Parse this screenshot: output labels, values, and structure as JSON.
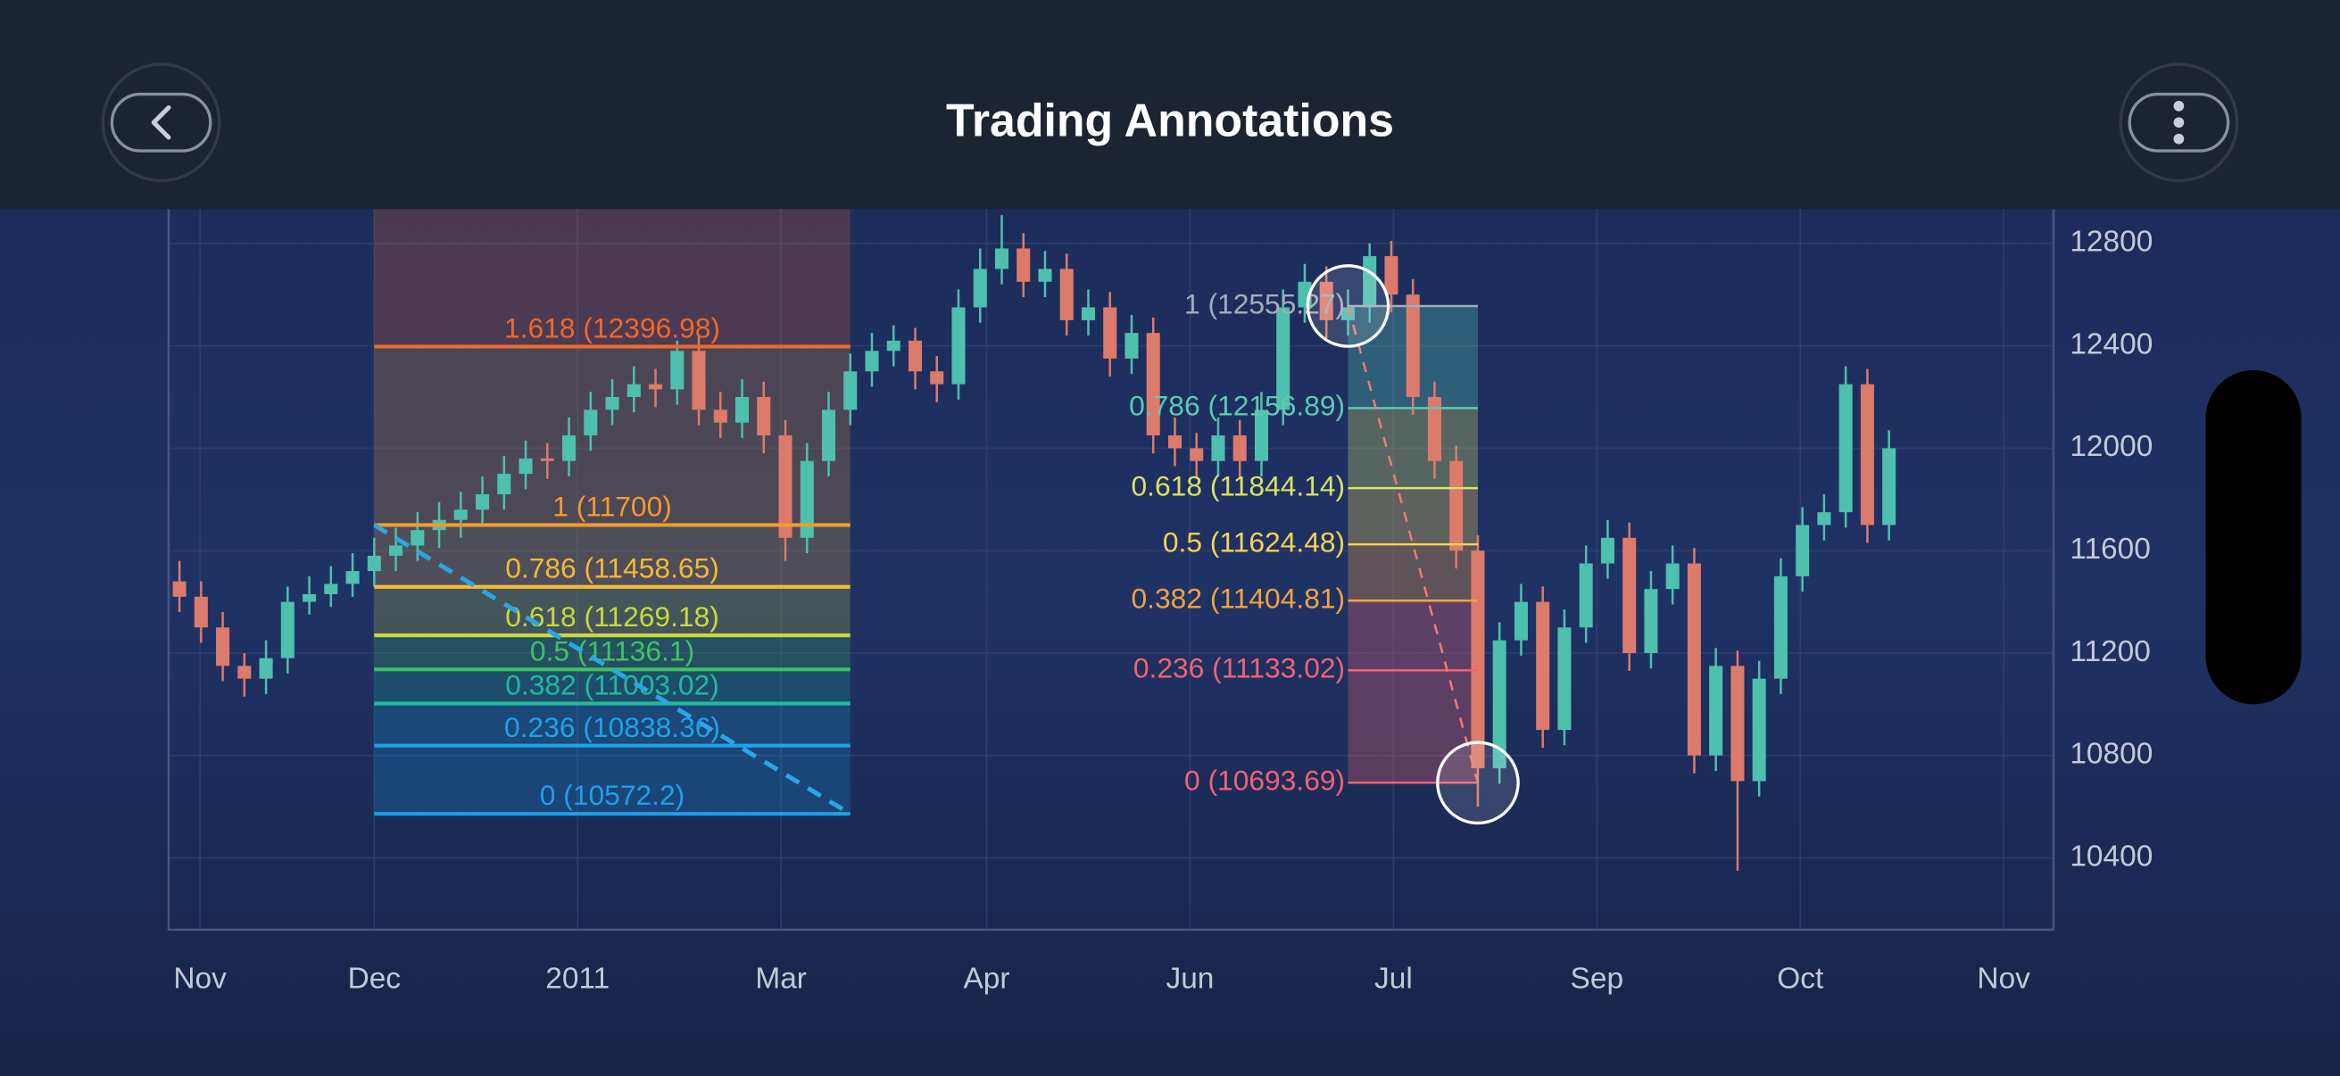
{
  "header": {
    "title": "Trading Annotations"
  },
  "chart_data": {
    "type": "candlestick",
    "up_color": "#4fbfae",
    "down_color": "#dc7a6c",
    "xlim": [
      0,
      87.1
    ],
    "xticks": [
      {
        "value": 1.45,
        "label": "Nov"
      },
      {
        "value": 9.5,
        "label": "Dec"
      },
      {
        "value": 18.9,
        "label": "2011"
      },
      {
        "value": 28.3,
        "label": "Mar"
      },
      {
        "value": 37.8,
        "label": "Apr"
      },
      {
        "value": 47.2,
        "label": "Jun"
      },
      {
        "value": 56.6,
        "label": "Jul"
      },
      {
        "value": 66.0,
        "label": "Sep"
      },
      {
        "value": 75.4,
        "label": "Oct"
      },
      {
        "value": 84.8,
        "label": "Nov"
      }
    ],
    "ylim": [
      10120,
      12934
    ],
    "yticks": [
      10400,
      10800,
      11200,
      11600,
      12000,
      12400,
      12800
    ],
    "grid": true,
    "candles": [
      [
        11480,
        11560,
        11360,
        11420
      ],
      [
        11420,
        11480,
        11240,
        11300
      ],
      [
        11300,
        11360,
        11090,
        11150
      ],
      [
        11150,
        11200,
        11030,
        11100
      ],
      [
        11100,
        11250,
        11040,
        11180
      ],
      [
        11180,
        11460,
        11120,
        11400
      ],
      [
        11400,
        11500,
        11350,
        11430
      ],
      [
        11430,
        11540,
        11380,
        11470
      ],
      [
        11470,
        11590,
        11420,
        11520
      ],
      [
        11520,
        11650,
        11460,
        11580
      ],
      [
        11580,
        11690,
        11520,
        11620
      ],
      [
        11620,
        11750,
        11560,
        11680
      ],
      [
        11680,
        11790,
        11610,
        11720
      ],
      [
        11720,
        11830,
        11650,
        11760
      ],
      [
        11760,
        11890,
        11700,
        11820
      ],
      [
        11820,
        11970,
        11760,
        11900
      ],
      [
        11900,
        12030,
        11840,
        11960
      ],
      [
        11960,
        12020,
        11880,
        11950
      ],
      [
        11950,
        12120,
        11890,
        12050
      ],
      [
        12050,
        12220,
        11990,
        12150
      ],
      [
        12150,
        12270,
        12090,
        12200
      ],
      [
        12200,
        12320,
        12140,
        12250
      ],
      [
        12250,
        12310,
        12160,
        12230
      ],
      [
        12230,
        12420,
        12170,
        12380
      ],
      [
        12380,
        12440,
        12090,
        12150
      ],
      [
        12150,
        12220,
        12040,
        12100
      ],
      [
        12100,
        12270,
        12040,
        12200
      ],
      [
        12200,
        12260,
        11980,
        12050
      ],
      [
        12050,
        12110,
        11560,
        11650
      ],
      [
        11650,
        12020,
        11590,
        11950
      ],
      [
        11950,
        12220,
        11890,
        12150
      ],
      [
        12150,
        12370,
        12090,
        12300
      ],
      [
        12300,
        12450,
        12240,
        12380
      ],
      [
        12380,
        12480,
        12320,
        12420
      ],
      [
        12420,
        12470,
        12230,
        12300
      ],
      [
        12300,
        12360,
        12180,
        12250
      ],
      [
        12250,
        12620,
        12190,
        12550
      ],
      [
        12550,
        12780,
        12490,
        12700
      ],
      [
        12700,
        12910,
        12640,
        12780
      ],
      [
        12780,
        12840,
        12590,
        12650
      ],
      [
        12650,
        12770,
        12590,
        12700
      ],
      [
        12700,
        12760,
        12440,
        12500
      ],
      [
        12500,
        12620,
        12440,
        12550
      ],
      [
        12550,
        12610,
        12280,
        12350
      ],
      [
        12350,
        12520,
        12290,
        12450
      ],
      [
        12450,
        12510,
        11980,
        12050
      ],
      [
        12050,
        12120,
        11930,
        12000
      ],
      [
        12000,
        12060,
        11880,
        11950
      ],
      [
        11950,
        12120,
        11890,
        12050
      ],
      [
        12050,
        12110,
        11880,
        11950
      ],
      [
        11950,
        12220,
        11890,
        12150
      ],
      [
        12150,
        12620,
        12090,
        12550
      ],
      [
        12550,
        12720,
        12490,
        12650
      ],
      [
        12650,
        12710,
        12430,
        12500
      ],
      [
        12500,
        12620,
        12440,
        12550
      ],
      [
        12550,
        12800,
        12490,
        12750
      ],
      [
        12750,
        12810,
        12530,
        12600
      ],
      [
        12600,
        12660,
        12130,
        12200
      ],
      [
        12200,
        12260,
        11880,
        11950
      ],
      [
        11950,
        12010,
        11530,
        11600
      ],
      [
        11600,
        11660,
        10600,
        10750
      ],
      [
        10750,
        11320,
        10690,
        11250
      ],
      [
        11250,
        11470,
        11190,
        11400
      ],
      [
        11400,
        11460,
        10830,
        10900
      ],
      [
        10900,
        11370,
        10840,
        11300
      ],
      [
        11300,
        11620,
        11240,
        11550
      ],
      [
        11550,
        11720,
        11490,
        11650
      ],
      [
        11650,
        11710,
        11130,
        11200
      ],
      [
        11200,
        11520,
        11140,
        11450
      ],
      [
        11450,
        11620,
        11390,
        11550
      ],
      [
        11550,
        11610,
        10730,
        10800
      ],
      [
        10800,
        11220,
        10740,
        11150
      ],
      [
        11150,
        11210,
        10350,
        10700
      ],
      [
        10700,
        11170,
        10640,
        11100
      ],
      [
        11100,
        11570,
        11040,
        11500
      ],
      [
        11500,
        11770,
        11440,
        11700
      ],
      [
        11700,
        11820,
        11640,
        11750
      ],
      [
        11750,
        12320,
        11690,
        12250
      ],
      [
        12250,
        12310,
        11630,
        11700
      ],
      [
        11700,
        12070,
        11640,
        12000
      ]
    ],
    "fibonacci": [
      {
        "from": 9,
        "to": 31,
        "line_color": "#2aa6e6",
        "levels": [
          {
            "label": "1.618 (12396.98)",
            "value": 12396.98,
            "color": "#f0682c"
          },
          {
            "label": "1 (11700)",
            "value": 11700,
            "color": "#f39a2c"
          },
          {
            "label": "0.786 (11458.65)",
            "value": 11458.65,
            "color": "#f5b835"
          },
          {
            "label": "0.618 (11269.18)",
            "value": 11269.18,
            "color": "#c9d83c"
          },
          {
            "label": "0.5 (11136.1)",
            "value": 11136.1,
            "color": "#3fc262"
          },
          {
            "label": "0.382 (11003.02)",
            "value": 11003.02,
            "color": "#22b99c"
          },
          {
            "label": "0.236 (10838.36)",
            "value": 10838.36,
            "color": "#1ca3e4"
          },
          {
            "label": "0 (10572.2)",
            "value": 10572.2,
            "color": "#1ca0ea"
          }
        ]
      },
      {
        "from": 54,
        "to": 60,
        "line_color": "#f07a78",
        "levels": [
          {
            "label": "1 (12555.27)",
            "value": 12555.27,
            "color": "#a4acbc"
          },
          {
            "label": "0.786 (12156.89)",
            "value": 12156.89,
            "color": "#5ec9b2"
          },
          {
            "label": "0.618 (11844.14)",
            "value": 11844.14,
            "color": "#d9e262"
          },
          {
            "label": "0.5 (11624.48)",
            "value": 11624.48,
            "color": "#f6d252"
          },
          {
            "label": "0.382 (11404.81)",
            "value": 11404.81,
            "color": "#f2a342"
          },
          {
            "label": "0.236 (11133.02)",
            "value": 11133.02,
            "color": "#f26272"
          },
          {
            "label": "0 (10693.69)",
            "value": 10693.69,
            "color": "#f26272"
          }
        ]
      }
    ]
  }
}
